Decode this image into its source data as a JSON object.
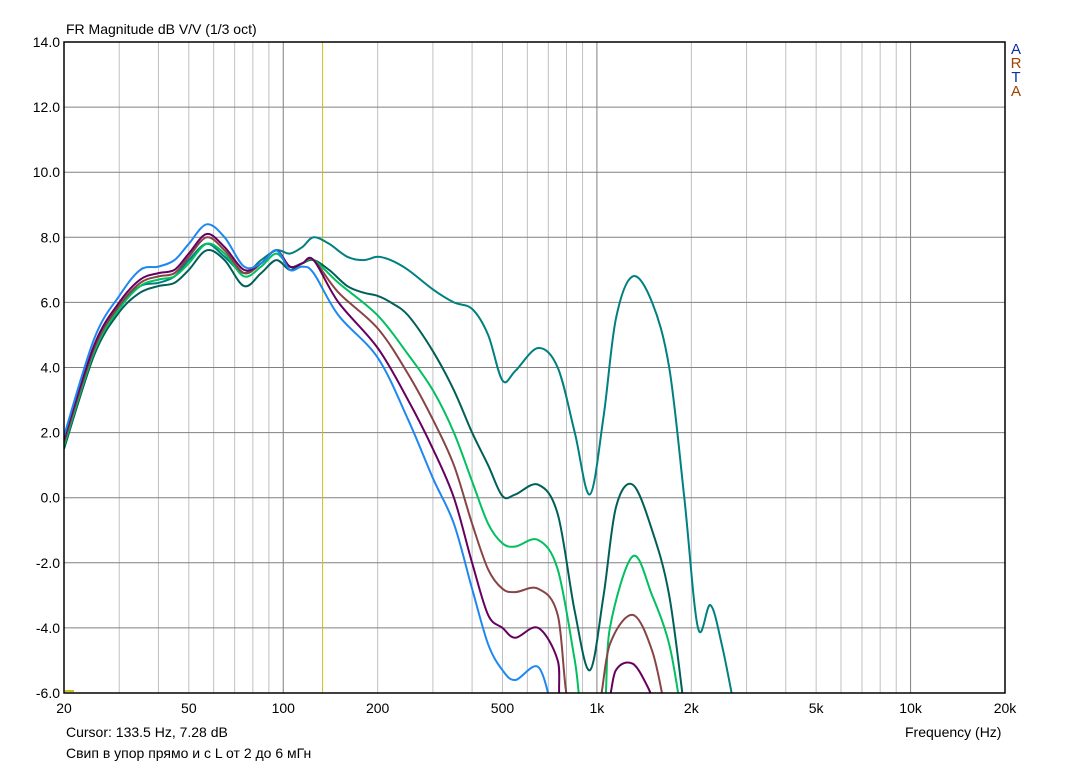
{
  "title": "FR Magnitude dB V/V (1/3 oct)",
  "logo_letters": [
    "A",
    "R",
    "T",
    "A"
  ],
  "cursor_readout": "Cursor: 133.5 Hz, 7.28 dB",
  "note": "Свип в упор прямо и с L от 2 до 6 мГн",
  "chart_data": {
    "type": "line",
    "title": "FR Magnitude dB V/V (1/3 oct)",
    "xlabel": "Frequency (Hz)",
    "ylabel": "",
    "xscale": "log",
    "xlim": [
      20,
      20000
    ],
    "ylim": [
      -6,
      14
    ],
    "grid": true,
    "x_ticks": [
      20,
      50,
      100,
      200,
      500,
      1000,
      2000,
      5000,
      10000,
      20000
    ],
    "x_tick_labels": [
      "20",
      "50",
      "100",
      "200",
      "500",
      "1k",
      "2k",
      "5k",
      "10k",
      "20k"
    ],
    "y_ticks": [
      14,
      12,
      10,
      8,
      6,
      4,
      2,
      0,
      -2,
      -4,
      -6
    ],
    "y_tick_labels": [
      "14.0",
      "12.0",
      "10.0",
      "8.0",
      "6.0",
      "4.0",
      "2.0",
      "0.0",
      "-2.0",
      "-4.0",
      "-6.0"
    ],
    "cursor": {
      "frequency": 133.5,
      "value": 7.28,
      "color": "#c8c020"
    },
    "series": [
      {
        "color": "#008080",
        "points": [
          [
            20,
            1.8
          ],
          [
            25,
            4.6
          ],
          [
            30,
            5.9
          ],
          [
            35,
            6.5
          ],
          [
            40,
            6.6
          ],
          [
            45,
            6.8
          ],
          [
            50,
            7.3
          ],
          [
            57,
            7.8
          ],
          [
            65,
            7.4
          ],
          [
            75,
            6.9
          ],
          [
            85,
            7.3
          ],
          [
            95,
            7.6
          ],
          [
            105,
            7.5
          ],
          [
            115,
            7.7
          ],
          [
            125,
            8.0
          ],
          [
            140,
            7.8
          ],
          [
            160,
            7.4
          ],
          [
            180,
            7.3
          ],
          [
            200,
            7.4
          ],
          [
            220,
            7.3
          ],
          [
            250,
            7.0
          ],
          [
            300,
            6.4
          ],
          [
            350,
            6.0
          ],
          [
            400,
            5.8
          ],
          [
            450,
            5.0
          ],
          [
            500,
            3.6
          ],
          [
            550,
            3.9
          ],
          [
            650,
            4.6
          ],
          [
            750,
            4.0
          ],
          [
            850,
            2.0
          ],
          [
            950,
            0.1
          ],
          [
            1050,
            2.5
          ],
          [
            1150,
            5.5
          ],
          [
            1300,
            6.8
          ],
          [
            1500,
            6.0
          ],
          [
            1700,
            4.0
          ],
          [
            1900,
            0.0
          ],
          [
            2100,
            -4.0
          ],
          [
            2300,
            -3.3
          ],
          [
            2500,
            -4.5
          ],
          [
            2750,
            -6.5
          ]
        ]
      },
      {
        "color": "#006058",
        "points": [
          [
            20,
            1.5
          ],
          [
            25,
            4.4
          ],
          [
            30,
            5.7
          ],
          [
            35,
            6.3
          ],
          [
            40,
            6.5
          ],
          [
            45,
            6.6
          ],
          [
            50,
            7.0
          ],
          [
            57,
            7.6
          ],
          [
            65,
            7.3
          ],
          [
            75,
            6.5
          ],
          [
            85,
            6.9
          ],
          [
            95,
            7.3
          ],
          [
            105,
            7.0
          ],
          [
            115,
            7.2
          ],
          [
            125,
            7.3
          ],
          [
            140,
            7.0
          ],
          [
            160,
            6.5
          ],
          [
            180,
            6.3
          ],
          [
            200,
            6.2
          ],
          [
            220,
            6.0
          ],
          [
            250,
            5.6
          ],
          [
            300,
            4.5
          ],
          [
            350,
            3.3
          ],
          [
            400,
            2.0
          ],
          [
            450,
            1.0
          ],
          [
            500,
            0.05
          ],
          [
            550,
            0.1
          ],
          [
            650,
            0.4
          ],
          [
            750,
            -0.5
          ],
          [
            850,
            -3.5
          ],
          [
            950,
            -5.3
          ],
          [
            1050,
            -3.0
          ],
          [
            1150,
            -0.3
          ],
          [
            1300,
            0.4
          ],
          [
            1500,
            -1.0
          ],
          [
            1700,
            -3.0
          ],
          [
            1900,
            -6.5
          ]
        ]
      },
      {
        "color": "#00c060",
        "points": [
          [
            20,
            1.6
          ],
          [
            25,
            4.5
          ],
          [
            30,
            5.8
          ],
          [
            35,
            6.5
          ],
          [
            40,
            6.7
          ],
          [
            45,
            6.8
          ],
          [
            50,
            7.2
          ],
          [
            57,
            7.8
          ],
          [
            65,
            7.5
          ],
          [
            75,
            6.8
          ],
          [
            85,
            7.1
          ],
          [
            95,
            7.5
          ],
          [
            105,
            7.1
          ],
          [
            115,
            7.2
          ],
          [
            125,
            7.3
          ],
          [
            150,
            6.6
          ],
          [
            200,
            5.6
          ],
          [
            250,
            4.4
          ],
          [
            300,
            3.3
          ],
          [
            350,
            2.0
          ],
          [
            400,
            0.5
          ],
          [
            450,
            -0.8
          ],
          [
            500,
            -1.4
          ],
          [
            550,
            -1.5
          ],
          [
            650,
            -1.3
          ],
          [
            750,
            -2.2
          ],
          [
            850,
            -5.0
          ],
          [
            900,
            -6.5
          ],
          [
            1050,
            -6.5
          ],
          [
            1100,
            -4.0
          ],
          [
            1300,
            -1.8
          ],
          [
            1500,
            -3.0
          ],
          [
            1700,
            -4.5
          ],
          [
            1850,
            -6.5
          ]
        ]
      },
      {
        "color": "#884444",
        "points": [
          [
            20,
            1.7
          ],
          [
            25,
            4.6
          ],
          [
            30,
            5.9
          ],
          [
            35,
            6.6
          ],
          [
            40,
            6.8
          ],
          [
            45,
            6.9
          ],
          [
            50,
            7.4
          ],
          [
            57,
            8.0
          ],
          [
            65,
            7.6
          ],
          [
            75,
            6.9
          ],
          [
            85,
            7.2
          ],
          [
            95,
            7.6
          ],
          [
            105,
            7.1
          ],
          [
            115,
            7.2
          ],
          [
            125,
            7.3
          ],
          [
            150,
            6.3
          ],
          [
            200,
            5.2
          ],
          [
            250,
            3.8
          ],
          [
            300,
            2.4
          ],
          [
            350,
            1.0
          ],
          [
            400,
            -0.8
          ],
          [
            450,
            -2.2
          ],
          [
            500,
            -2.8
          ],
          [
            550,
            -2.9
          ],
          [
            650,
            -2.8
          ],
          [
            750,
            -3.6
          ],
          [
            820,
            -6.5
          ],
          [
            1000,
            -6.5
          ],
          [
            1100,
            -4.5
          ],
          [
            1300,
            -3.6
          ],
          [
            1500,
            -4.7
          ],
          [
            1650,
            -6.5
          ]
        ]
      },
      {
        "color": "#660060",
        "points": [
          [
            20,
            1.8
          ],
          [
            25,
            4.7
          ],
          [
            30,
            6.0
          ],
          [
            35,
            6.7
          ],
          [
            40,
            6.9
          ],
          [
            45,
            7.0
          ],
          [
            50,
            7.5
          ],
          [
            57,
            8.1
          ],
          [
            65,
            7.7
          ],
          [
            75,
            7.0
          ],
          [
            85,
            7.2
          ],
          [
            95,
            7.6
          ],
          [
            105,
            7.1
          ],
          [
            115,
            7.2
          ],
          [
            125,
            7.3
          ],
          [
            150,
            6.0
          ],
          [
            200,
            4.6
          ],
          [
            250,
            3.0
          ],
          [
            300,
            1.5
          ],
          [
            350,
            0.0
          ],
          [
            400,
            -2.0
          ],
          [
            450,
            -3.6
          ],
          [
            500,
            -4.0
          ],
          [
            550,
            -4.3
          ],
          [
            650,
            -4.0
          ],
          [
            750,
            -5.0
          ],
          [
            780,
            -6.5
          ],
          [
            1050,
            -6.5
          ],
          [
            1150,
            -5.3
          ],
          [
            1300,
            -5.1
          ],
          [
            1450,
            -5.8
          ],
          [
            1550,
            -6.5
          ]
        ]
      },
      {
        "color": "#1e88f0",
        "points": [
          [
            20,
            1.9
          ],
          [
            25,
            4.9
          ],
          [
            30,
            6.2
          ],
          [
            35,
            7.0
          ],
          [
            40,
            7.1
          ],
          [
            45,
            7.3
          ],
          [
            50,
            7.8
          ],
          [
            57,
            8.4
          ],
          [
            65,
            8.0
          ],
          [
            75,
            7.1
          ],
          [
            85,
            7.2
          ],
          [
            95,
            7.6
          ],
          [
            105,
            7.0
          ],
          [
            115,
            7.1
          ],
          [
            125,
            6.9
          ],
          [
            150,
            5.6
          ],
          [
            200,
            4.3
          ],
          [
            250,
            2.4
          ],
          [
            300,
            0.6
          ],
          [
            350,
            -0.8
          ],
          [
            400,
            -2.8
          ],
          [
            450,
            -4.5
          ],
          [
            500,
            -5.3
          ],
          [
            550,
            -5.6
          ],
          [
            650,
            -5.2
          ],
          [
            720,
            -6.5
          ]
        ]
      }
    ]
  }
}
